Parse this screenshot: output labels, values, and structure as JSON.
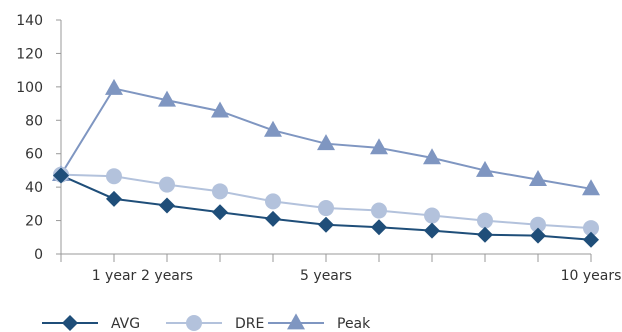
{
  "chart_data": {
    "type": "line",
    "title": "",
    "xlabel": "",
    "ylabel": "",
    "ylim": [
      0,
      140
    ],
    "yticks": [
      0,
      20,
      40,
      60,
      80,
      100,
      120,
      140
    ],
    "x": [
      0,
      1,
      2,
      3,
      4,
      5,
      6,
      7,
      8,
      9,
      10
    ],
    "x_tick_labels": [
      {
        "x": 1,
        "label": "1 year"
      },
      {
        "x": 2,
        "label": "2 years"
      },
      {
        "x": 5,
        "label": "5 years"
      },
      {
        "x": 10,
        "label": "10 years"
      }
    ],
    "grid": false,
    "legend_position": "bottom-left",
    "series": [
      {
        "name": "AVG",
        "color": "#1f4e79",
        "marker": "diamond",
        "values": [
          47,
          33,
          29,
          25,
          21,
          17.5,
          16,
          14,
          11.5,
          11,
          8.5
        ]
      },
      {
        "name": "DRE",
        "color": "#b3c2dc",
        "marker": "circle",
        "values": [
          47.5,
          46.5,
          41.5,
          37.5,
          31.5,
          27.5,
          26,
          23,
          20,
          17.5,
          15.5
        ]
      },
      {
        "name": "Peak",
        "color": "#7f96c1",
        "marker": "triangle",
        "values": [
          47.5,
          99,
          92,
          85.5,
          74,
          66,
          63.5,
          57.5,
          50,
          44.5,
          39
        ]
      }
    ]
  }
}
